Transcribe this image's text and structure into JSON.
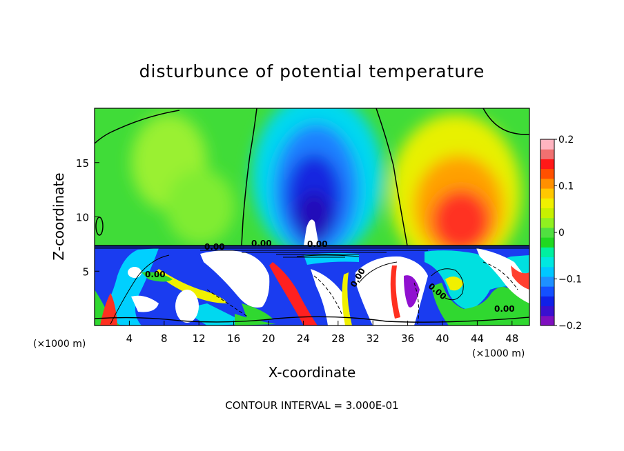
{
  "chart_data": {
    "type": "heatmap",
    "title": "disturbunce of potential temperature",
    "xlabel": "X-coordinate",
    "ylabel": "Z-coordinate",
    "x_unit": "(×1000 m)",
    "x_unit_right": "(×1000 m)",
    "xlim": [
      0,
      50
    ],
    "ylim": [
      0,
      20
    ],
    "x_ticks": [
      4,
      8,
      12,
      16,
      20,
      24,
      28,
      32,
      36,
      40,
      44,
      48
    ],
    "y_ticks": [
      5,
      10,
      15
    ],
    "colorbar": {
      "range": [
        -0.2,
        0.2
      ],
      "ticks": [
        0.2,
        0.1,
        0,
        -0.1,
        -0.2
      ],
      "tick_labels": [
        "0.2",
        "0.1",
        "0",
        "−0.1",
        "−0.2"
      ],
      "colors": [
        "#7f0fbf",
        "#3a0fd0",
        "#1020e8",
        "#1450ff",
        "#1e90ff",
        "#00c8ff",
        "#00e8e0",
        "#00f0a0",
        "#20d820",
        "#50e040",
        "#90f020",
        "#c8f000",
        "#f0f000",
        "#ffc800",
        "#ff9000",
        "#ff5000",
        "#ff1818",
        "#f07070",
        "#ffb4c0"
      ]
    },
    "contour_interval": "CONTOUR INTERVAL = 3.000E-01",
    "contour_labels": [
      "0.00",
      "0.00",
      "0.00",
      "0.00",
      "0.00",
      "0.00",
      "0.00"
    ],
    "features": [
      {
        "x": 25,
        "z": 12,
        "value": -0.18
      },
      {
        "x": 42,
        "z": 10,
        "value": 0.14
      },
      {
        "x": 8,
        "z": 14,
        "value": 0.0
      }
    ],
    "grid": false
  }
}
